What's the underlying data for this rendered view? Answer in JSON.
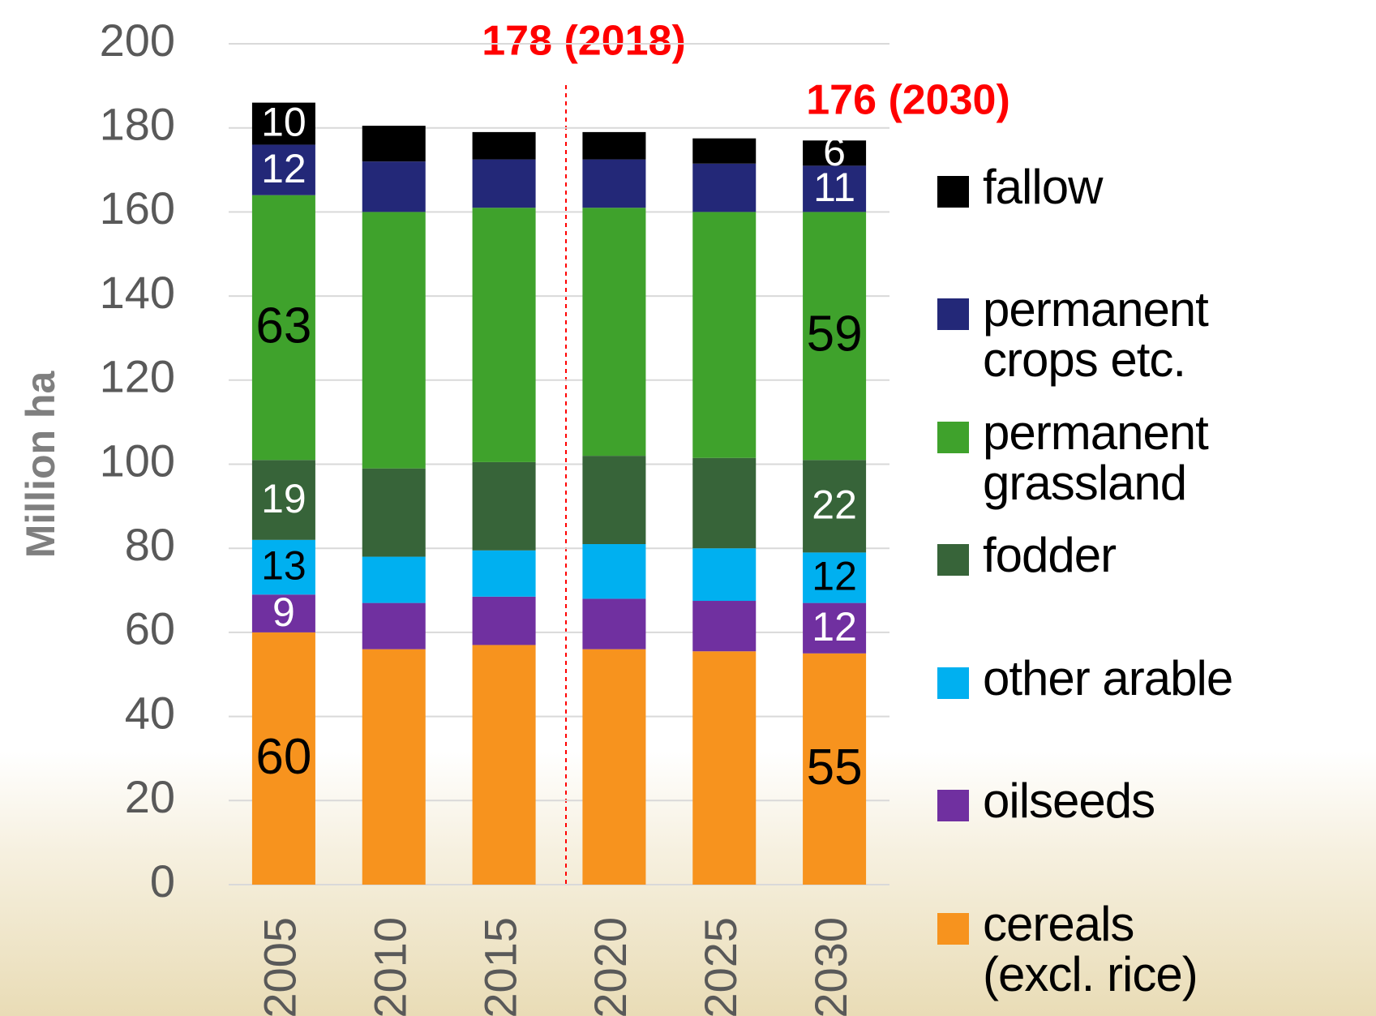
{
  "chart_data": {
    "type": "stacked_bar",
    "y_axis_label": "Million ha",
    "categories": [
      "2005",
      "2010",
      "2015",
      "2020",
      "2025",
      "2030"
    ],
    "series": [
      {
        "name": "cereals (excl. rice)",
        "color": "#f7931e",
        "values": [
          60,
          56,
          57,
          56,
          55.5,
          55
        ],
        "value_labels": [
          "60",
          null,
          null,
          null,
          null,
          "55"
        ]
      },
      {
        "name": "oilseeds",
        "color": "#7030a0",
        "values": [
          9,
          11,
          11.5,
          12,
          12,
          12
        ],
        "value_labels": [
          "9",
          null,
          null,
          null,
          null,
          "12"
        ]
      },
      {
        "name": "other arable",
        "color": "#00b0f0",
        "values": [
          13,
          11,
          11,
          13,
          12.5,
          12
        ],
        "value_labels": [
          "13",
          null,
          null,
          null,
          null,
          "12"
        ]
      },
      {
        "name": "fodder",
        "color": "#376439",
        "values": [
          19,
          21,
          21,
          21,
          21.5,
          22
        ],
        "value_labels": [
          "19",
          null,
          null,
          null,
          null,
          "22"
        ]
      },
      {
        "name": "permanent grassland",
        "color": "#3fa22c",
        "values": [
          63,
          61,
          60.5,
          59,
          58.5,
          59
        ],
        "value_labels": [
          "63",
          null,
          null,
          null,
          null,
          "59"
        ]
      },
      {
        "name": "permanent crops etc.",
        "color": "#232878",
        "values": [
          12,
          12,
          11.5,
          11.5,
          11.5,
          11
        ],
        "value_labels": [
          "12",
          null,
          null,
          null,
          null,
          "11"
        ]
      },
      {
        "name": "fallow",
        "color": "#000000",
        "values": [
          10,
          8.5,
          6.5,
          6.5,
          6,
          6
        ],
        "value_labels": [
          "10",
          null,
          null,
          null,
          null,
          "6"
        ]
      }
    ],
    "annotations": [
      "178 (2018)",
      "176 (2030)"
    ],
    "ylim": [
      0,
      200
    ],
    "yticks": [
      0,
      20,
      40,
      60,
      80,
      100,
      120,
      140,
      160,
      180,
      200
    ],
    "grid": true,
    "legend": "right"
  }
}
